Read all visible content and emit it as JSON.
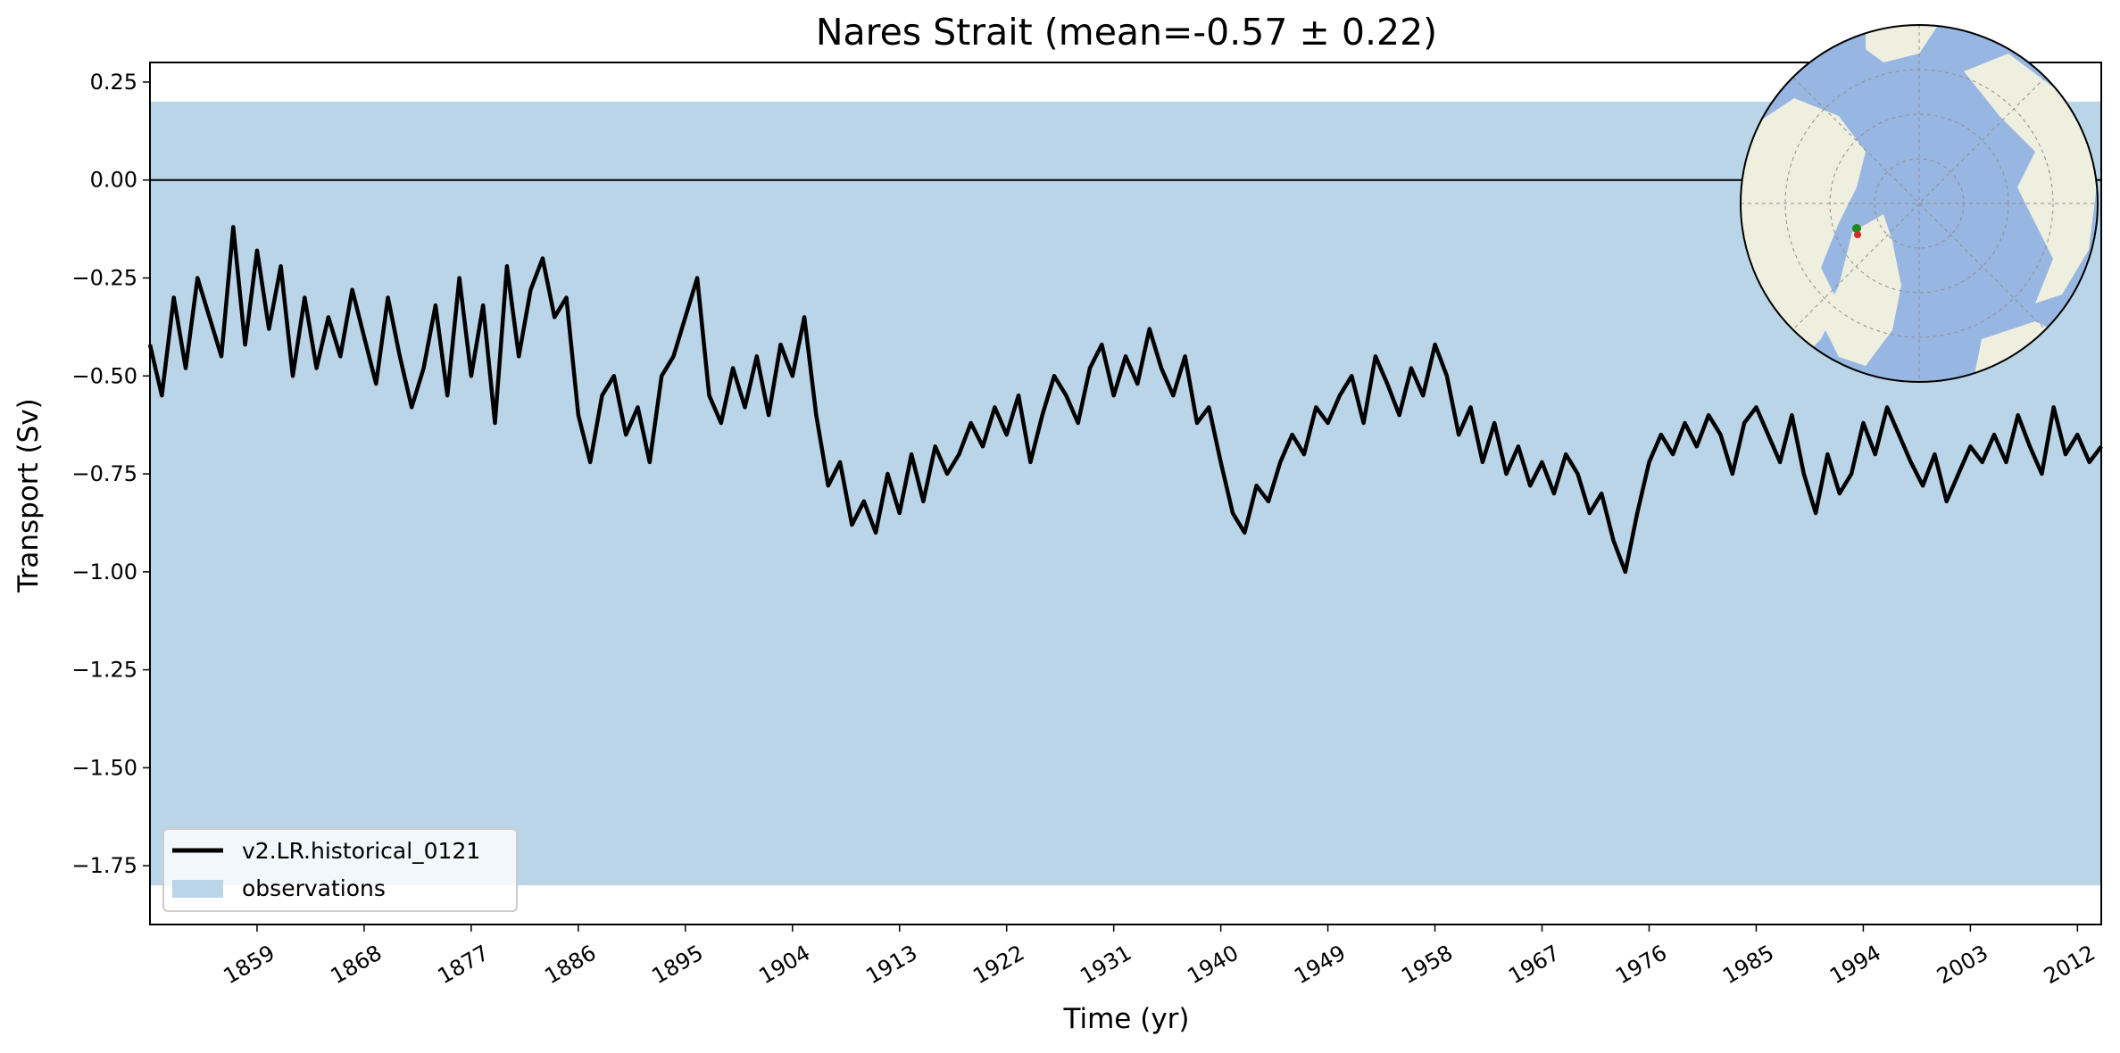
{
  "chart_data": {
    "type": "line",
    "title": "Nares Strait (mean=-0.57 ± 0.22)",
    "xlabel": "Time (yr)",
    "ylabel": "Transport (Sv)",
    "xlim": [
      1850,
      2014
    ],
    "ylim": [
      -1.9,
      0.3
    ],
    "x_ticks": [
      1859,
      1868,
      1877,
      1886,
      1895,
      1904,
      1913,
      1922,
      1931,
      1940,
      1949,
      1958,
      1967,
      1976,
      1985,
      1994,
      2003,
      2012
    ],
    "x_tick_labels": [
      "1859",
      "1868",
      "1877",
      "1886",
      "1895",
      "1904",
      "1913",
      "1922",
      "1931",
      "1940",
      "1949",
      "1958",
      "1967",
      "1976",
      "1985",
      "1994",
      "2003",
      "2012"
    ],
    "y_ticks": [
      0.25,
      0.0,
      -0.25,
      -0.5,
      -0.75,
      -1.0,
      -1.25,
      -1.5,
      -1.75
    ],
    "y_tick_labels": [
      "0.25",
      "0.00",
      "−0.25",
      "−0.50",
      "−0.75",
      "−1.00",
      "−1.25",
      "−1.50",
      "−1.75"
    ],
    "grid": false,
    "legend_position": "lower-left",
    "observations_band": {
      "name": "observations",
      "ymin": -1.8,
      "ymax": 0.2,
      "color": "#b9d5e7"
    },
    "zero_line": 0.0,
    "series": [
      {
        "name": "v2.LR.historical_0121",
        "color": "#000000",
        "x": [
          1850.0,
          1851.0,
          1852.0,
          1853.0,
          1854.0,
          1855.0,
          1856.0,
          1857.0,
          1858.0,
          1859.0,
          1860.0,
          1861.0,
          1862.0,
          1863.0,
          1864.0,
          1865.0,
          1866.0,
          1867.0,
          1868.0,
          1869.0,
          1870.0,
          1871.0,
          1872.0,
          1873.0,
          1874.0,
          1875.0,
          1876.0,
          1877.0,
          1878.0,
          1879.0,
          1880.0,
          1881.0,
          1882.0,
          1883.0,
          1884.0,
          1885.0,
          1886.0,
          1887.0,
          1888.0,
          1889.0,
          1890.0,
          1891.0,
          1892.0,
          1893.0,
          1894.0,
          1895.0,
          1896.0,
          1897.0,
          1898.0,
          1899.0,
          1900.0,
          1901.0,
          1902.0,
          1903.0,
          1904.0,
          1905.0,
          1906.0,
          1907.0,
          1908.0,
          1909.0,
          1910.0,
          1911.0,
          1912.0,
          1913.0,
          1914.0,
          1915.0,
          1916.0,
          1917.0,
          1918.0,
          1919.0,
          1920.0,
          1921.0,
          1922.0,
          1923.0,
          1924.0,
          1925.0,
          1926.0,
          1927.0,
          1928.0,
          1929.0,
          1930.0,
          1931.0,
          1932.0,
          1933.0,
          1934.0,
          1935.0,
          1936.0,
          1937.0,
          1938.0,
          1939.0,
          1940.0,
          1941.0,
          1942.0,
          1943.0,
          1944.0,
          1945.0,
          1946.0,
          1947.0,
          1948.0,
          1949.0,
          1950.0,
          1951.0,
          1952.0,
          1953.0,
          1954.0,
          1955.0,
          1956.0,
          1957.0,
          1958.0,
          1959.0,
          1960.0,
          1961.0,
          1962.0,
          1963.0,
          1964.0,
          1965.0,
          1966.0,
          1967.0,
          1968.0,
          1969.0,
          1970.0,
          1971.0,
          1972.0,
          1973.0,
          1974.0,
          1975.0,
          1976.0,
          1977.0,
          1978.0,
          1979.0,
          1980.0,
          1981.0,
          1982.0,
          1983.0,
          1984.0,
          1985.0,
          1986.0,
          1987.0,
          1988.0,
          1989.0,
          1990.0,
          1991.0,
          1992.0,
          1993.0,
          1994.0,
          1995.0,
          1996.0,
          1997.0,
          1998.0,
          1999.0,
          2000.0,
          2001.0,
          2002.0,
          2003.0,
          2004.0,
          2005.0,
          2006.0,
          2007.0,
          2008.0,
          2009.0,
          2010.0,
          2011.0,
          2012.0,
          2013.0,
          2014.0
        ],
        "y": [
          -0.42,
          -0.55,
          -0.3,
          -0.48,
          -0.25,
          -0.35,
          -0.45,
          -0.12,
          -0.42,
          -0.18,
          -0.38,
          -0.22,
          -0.5,
          -0.3,
          -0.48,
          -0.35,
          -0.45,
          -0.28,
          -0.4,
          -0.52,
          -0.3,
          -0.45,
          -0.58,
          -0.48,
          -0.32,
          -0.55,
          -0.25,
          -0.5,
          -0.32,
          -0.62,
          -0.22,
          -0.45,
          -0.28,
          -0.2,
          -0.35,
          -0.3,
          -0.6,
          -0.72,
          -0.55,
          -0.5,
          -0.65,
          -0.58,
          -0.72,
          -0.5,
          -0.45,
          -0.35,
          -0.25,
          -0.55,
          -0.62,
          -0.48,
          -0.58,
          -0.45,
          -0.6,
          -0.42,
          -0.5,
          -0.35,
          -0.6,
          -0.78,
          -0.72,
          -0.88,
          -0.82,
          -0.9,
          -0.75,
          -0.85,
          -0.7,
          -0.82,
          -0.68,
          -0.75,
          -0.7,
          -0.62,
          -0.68,
          -0.58,
          -0.65,
          -0.55,
          -0.72,
          -0.6,
          -0.5,
          -0.55,
          -0.62,
          -0.48,
          -0.42,
          -0.55,
          -0.45,
          -0.52,
          -0.38,
          -0.48,
          -0.55,
          -0.45,
          -0.62,
          -0.58,
          -0.72,
          -0.85,
          -0.9,
          -0.78,
          -0.82,
          -0.72,
          -0.65,
          -0.7,
          -0.58,
          -0.62,
          -0.55,
          -0.5,
          -0.62,
          -0.45,
          -0.52,
          -0.6,
          -0.48,
          -0.55,
          -0.42,
          -0.5,
          -0.65,
          -0.58,
          -0.72,
          -0.62,
          -0.75,
          -0.68,
          -0.78,
          -0.72,
          -0.8,
          -0.7,
          -0.75,
          -0.85,
          -0.8,
          -0.92,
          -1.0,
          -0.85,
          -0.72,
          -0.65,
          -0.7,
          -0.62,
          -0.68,
          -0.6,
          -0.65,
          -0.75,
          -0.62,
          -0.58,
          -0.65,
          -0.72,
          -0.6,
          -0.75,
          -0.85,
          -0.7,
          -0.8,
          -0.75,
          -0.62,
          -0.7,
          -0.58,
          -0.65,
          -0.72,
          -0.78,
          -0.7,
          -0.82,
          -0.75,
          -0.68,
          -0.72,
          -0.65,
          -0.72,
          -0.6,
          -0.68,
          -0.75,
          -0.58,
          -0.7,
          -0.65,
          -0.72,
          -0.68
        ]
      }
    ]
  },
  "legend": {
    "series_label": "v2.LR.historical_0121",
    "band_label": "observations"
  },
  "map_inset": {
    "type": "arctic-polar-map",
    "land_color": "#efefdf",
    "ocean_color": "#97b6e1"
  }
}
